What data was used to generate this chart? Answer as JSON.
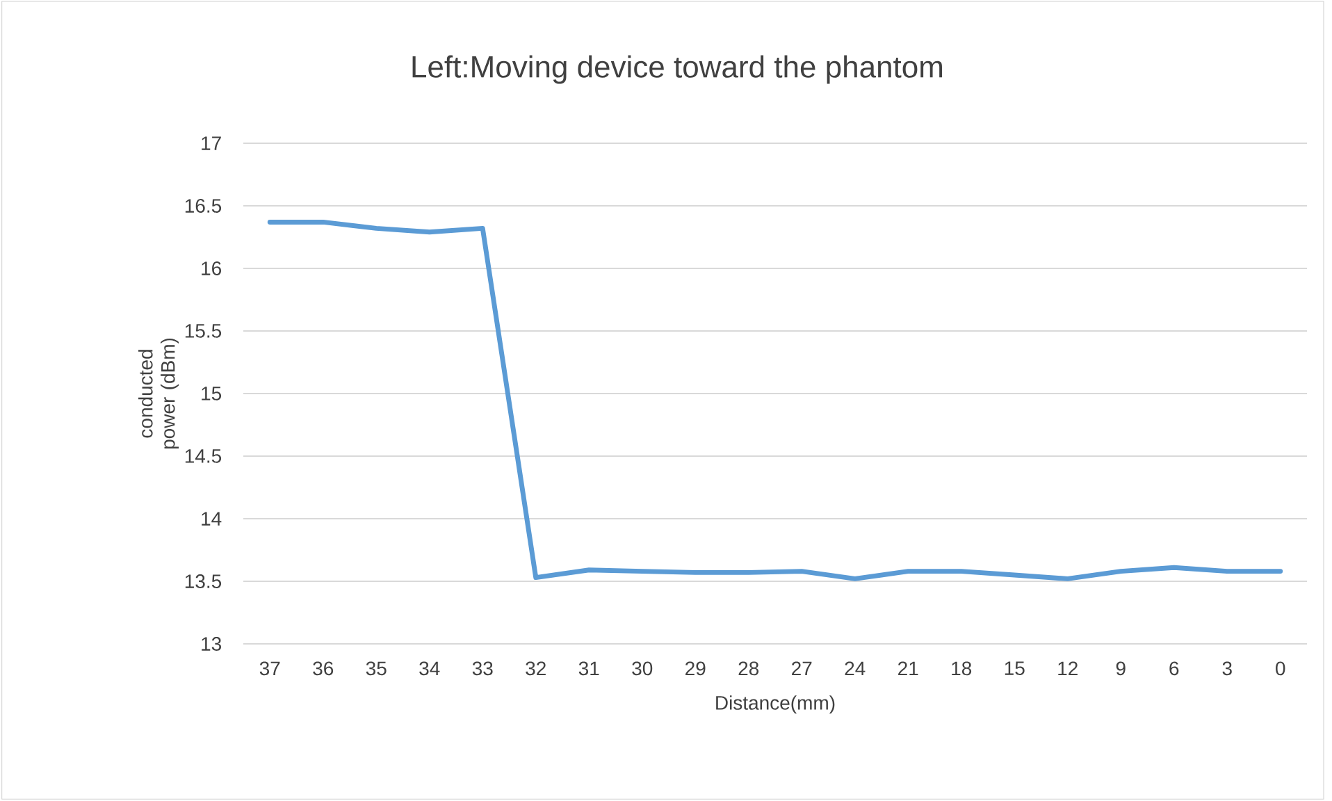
{
  "chart_data": {
    "type": "line",
    "title": "Left:Moving device toward the phantom",
    "xlabel": "Distance(mm)",
    "ylabel": "conducted power (dBm)",
    "categories": [
      "37",
      "36",
      "35",
      "34",
      "33",
      "32",
      "31",
      "30",
      "29",
      "28",
      "27",
      "24",
      "21",
      "18",
      "15",
      "12",
      "9",
      "6",
      "3",
      "0"
    ],
    "series": [
      {
        "color": "#5b9bd5",
        "values": [
          16.37,
          16.37,
          16.32,
          16.29,
          16.32,
          13.53,
          13.59,
          13.58,
          13.57,
          13.57,
          13.58,
          13.52,
          13.58,
          13.58,
          13.55,
          13.52,
          13.58,
          13.61,
          13.58,
          13.58
        ]
      }
    ],
    "ylim": [
      13,
      17
    ],
    "yticks": [
      13,
      13.5,
      14,
      14.5,
      15,
      15.5,
      16,
      16.5,
      17
    ],
    "grid": "y",
    "marker": "none",
    "line_style": "solid"
  }
}
